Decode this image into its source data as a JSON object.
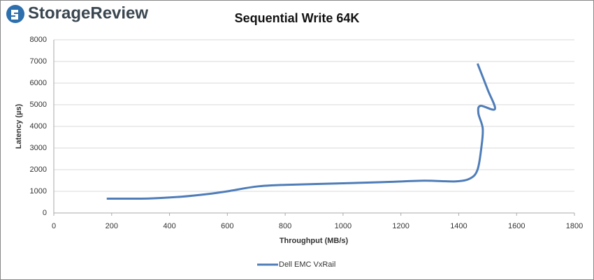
{
  "logo": "StorageReview",
  "chart_data": {
    "type": "line",
    "title": "Sequential Write 64K",
    "x_label": "Throughput (MB/s)",
    "y_label": "Latency (µs)",
    "xlim": [
      0,
      1800
    ],
    "xticks": [
      0,
      200,
      400,
      600,
      800,
      1000,
      1200,
      1400,
      1600,
      1800
    ],
    "ylim": [
      0,
      8000
    ],
    "yticks": [
      0,
      1000,
      2000,
      3000,
      4000,
      5000,
      6000,
      7000,
      8000
    ],
    "grid": true,
    "legend": "bottom",
    "series": [
      {
        "name": "Dell EMC VxRail",
        "color": "#4f7db8",
        "x": [
          183,
          330,
          440,
          530,
          600,
          700,
          800,
          1000,
          1150,
          1280,
          1390,
          1440,
          1465,
          1478,
          1483,
          1468,
          1475,
          1525,
          1500,
          1465
        ],
        "values": [
          660,
          670,
          750,
          870,
          1000,
          1220,
          1300,
          1370,
          1430,
          1490,
          1460,
          1600,
          2000,
          3000,
          3900,
          4600,
          4950,
          4800,
          5700,
          6900
        ]
      }
    ]
  }
}
